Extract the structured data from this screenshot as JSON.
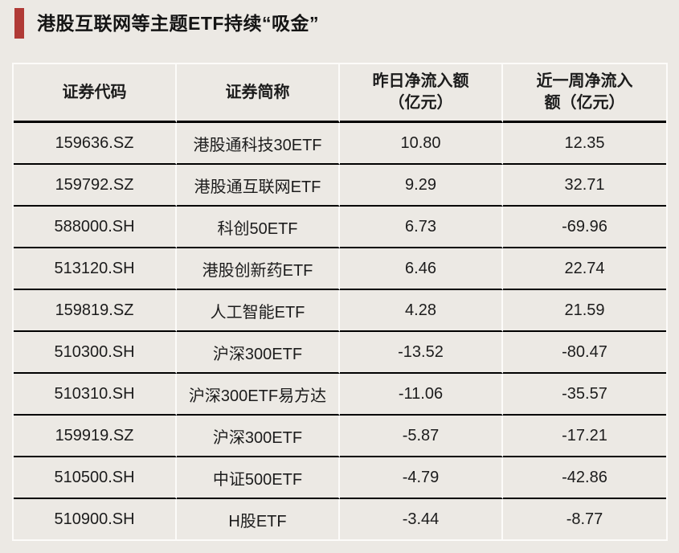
{
  "title": {
    "text": "港股互联网等主题ETF持续“吸金”"
  },
  "colors": {
    "background": "#ece9e4",
    "accent_bar_red": "#b03a36",
    "row_divider_black": "#000000",
    "cell_divider_white": "#fcfbf9",
    "text": "#1c1c1c"
  },
  "chart_data": {
    "type": "table",
    "title": "港股互联网等主题ETF持续“吸金”",
    "columns": [
      "证券代码",
      "证券简称",
      "昨日净流入额（亿元）",
      "近一周净流入额（亿元）"
    ],
    "header_lines": [
      [
        "证券代码"
      ],
      [
        "证券简称"
      ],
      [
        "昨日净流入额",
        "（亿元）"
      ],
      [
        "近一周净流入",
        "额（亿元）"
      ]
    ],
    "rows": [
      [
        "159636.SZ",
        "港股通科技30ETF",
        "10.80",
        "12.35"
      ],
      [
        "159792.SZ",
        "港股通互联网ETF",
        "9.29",
        "32.71"
      ],
      [
        "588000.SH",
        "科创50ETF",
        "6.73",
        "-69.96"
      ],
      [
        "513120.SH",
        "港股创新药ETF",
        "6.46",
        "22.74"
      ],
      [
        "159819.SZ",
        "人工智能ETF",
        "4.28",
        "21.59"
      ],
      [
        "510300.SH",
        "沪深300ETF",
        "-13.52",
        "-80.47"
      ],
      [
        "510310.SH",
        "沪深300ETF易方达",
        "-11.06",
        "-35.57"
      ],
      [
        "159919.SZ",
        "沪深300ETF",
        "-5.87",
        "-17.21"
      ],
      [
        "510500.SH",
        "中证500ETF",
        "-4.79",
        "-42.86"
      ],
      [
        "510900.SH",
        "H股ETF",
        "-3.44",
        "-8.77"
      ]
    ]
  }
}
